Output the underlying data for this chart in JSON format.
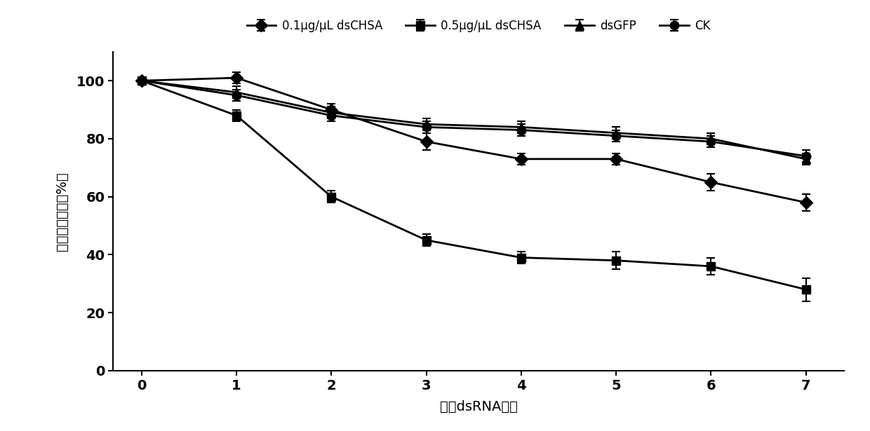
{
  "x": [
    0,
    1,
    2,
    3,
    4,
    5,
    6,
    7
  ],
  "series": [
    {
      "label": "0.1μg/μL dsCHSA",
      "y": [
        100,
        101,
        90,
        79,
        73,
        73,
        65,
        58
      ],
      "yerr": [
        1,
        2,
        2,
        3,
        2,
        2,
        3,
        3
      ],
      "marker": "D",
      "markersize": 9
    },
    {
      "label": "0.5μg/μL dsCHSA",
      "y": [
        100,
        88,
        60,
        45,
        39,
        38,
        36,
        28
      ],
      "yerr": [
        1,
        2,
        2,
        2,
        2,
        3,
        3,
        4
      ],
      "marker": "s",
      "markersize": 9
    },
    {
      "label": "dsGFP",
      "y": [
        100,
        96,
        89,
        85,
        84,
        82,
        80,
        73
      ],
      "yerr": [
        1,
        2,
        2,
        2,
        2,
        2,
        2,
        2
      ],
      "marker": "^",
      "markersize": 9
    },
    {
      "label": "CK",
      "y": [
        100,
        95,
        88,
        84,
        83,
        81,
        79,
        74
      ],
      "yerr": [
        1,
        2,
        2,
        2,
        2,
        2,
        2,
        2
      ],
      "marker": "o",
      "markersize": 9
    }
  ],
  "xlabel": "饲嗂dsRNA天数",
  "ylabel": "褐飞虏存活率（%）",
  "ylim": [
    0,
    110
  ],
  "xlim": [
    -0.3,
    7.4
  ],
  "yticks": [
    0,
    20,
    40,
    60,
    80,
    100
  ],
  "xticks": [
    0,
    1,
    2,
    3,
    4,
    5,
    6,
    7
  ],
  "color": "black",
  "linewidth": 2,
  "figsize": [
    12.4,
    6.15
  ],
  "dpi": 100
}
